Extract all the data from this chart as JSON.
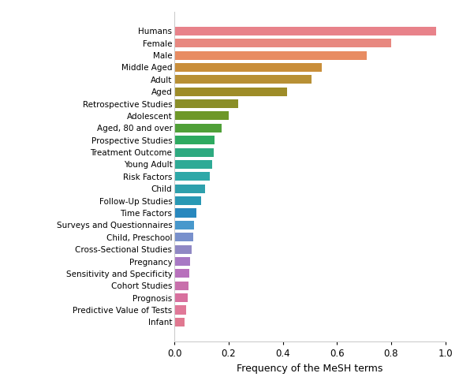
{
  "categories": [
    "Humans",
    "Female",
    "Male",
    "Middle Aged",
    "Adult",
    "Aged",
    "Retrospective Studies",
    "Adolescent",
    "Aged, 80 and over",
    "Prospective Studies",
    "Treatment Outcome",
    "Young Adult",
    "Risk Factors",
    "Child",
    "Follow-Up Studies",
    "Time Factors",
    "Surveys and Questionnaires",
    "Child, Preschool",
    "Cross-Sectional Studies",
    "Pregnancy",
    "Sensitivity and Specificity",
    "Cohort Studies",
    "Prognosis",
    "Predictive Value of Tests",
    "Infant"
  ],
  "values": [
    0.965,
    0.8,
    0.71,
    0.545,
    0.505,
    0.415,
    0.235,
    0.2,
    0.175,
    0.148,
    0.145,
    0.138,
    0.13,
    0.112,
    0.098,
    0.082,
    0.072,
    0.068,
    0.063,
    0.058,
    0.055,
    0.052,
    0.048,
    0.042,
    0.038
  ],
  "colors": [
    "#E8828A",
    "#E88880",
    "#E88C62",
    "#C98E3A",
    "#B89035",
    "#9E8C28",
    "#8A8E28",
    "#6E9828",
    "#50A038",
    "#2EAA60",
    "#2EAA80",
    "#2EAA96",
    "#2EA8A8",
    "#2EA0AC",
    "#2898B4",
    "#2888BE",
    "#4898CC",
    "#7890CC",
    "#9088C4",
    "#A878C4",
    "#B870BC",
    "#C870AC",
    "#D8709E",
    "#E07898",
    "#E07890"
  ],
  "xlabel": "Frequency of the MeSH terms",
  "xlim": [
    0,
    1.0
  ],
  "xticks": [
    0.0,
    0.2,
    0.4,
    0.6,
    0.8,
    1.0
  ],
  "figsize": [
    5.82,
    4.92
  ],
  "dpi": 100,
  "bar_height": 0.72,
  "fontsize_yticks": 7.5,
  "fontsize_xlabel": 9
}
